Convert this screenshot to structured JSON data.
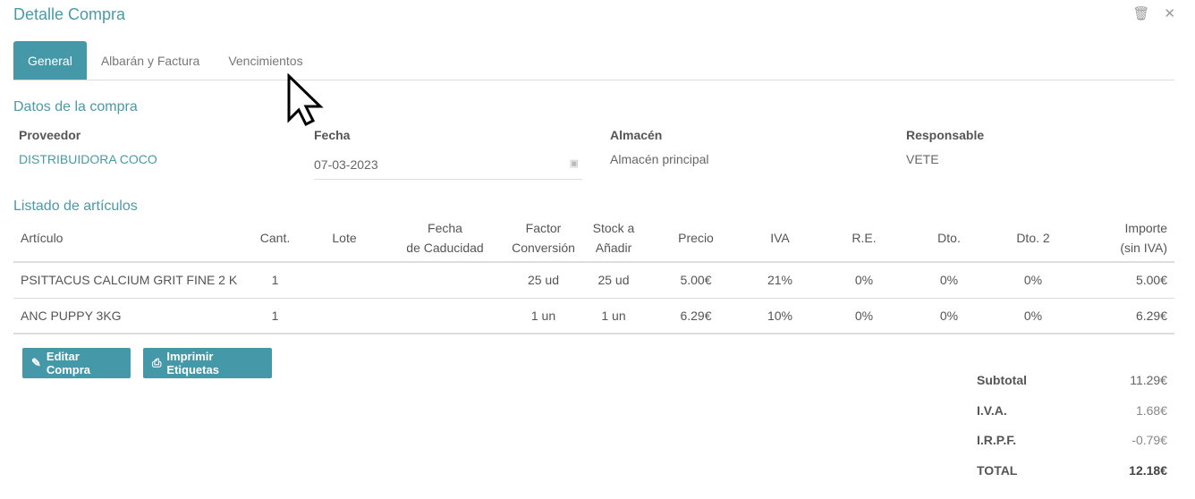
{
  "header": {
    "title": "Detalle Compra",
    "icons": [
      "trash-icon",
      "close-icon"
    ]
  },
  "tabs": [
    {
      "label": "General",
      "active": true
    },
    {
      "label": "Albarán y Factura"
    },
    {
      "label": "Vencimientos"
    }
  ],
  "datos": {
    "title": "Datos de la compra",
    "proveedor": {
      "label": "Proveedor",
      "value": "DISTRIBUIDORA COCO"
    },
    "fecha": {
      "label": "Fecha",
      "value": "07-03-2023"
    },
    "almacen": {
      "label": "Almacén",
      "value": "Almacén principal"
    },
    "responsable": {
      "label": "Responsable",
      "value": "VETE"
    }
  },
  "listado": {
    "title": "Listado de artículos",
    "columns": [
      "Artículo",
      "Cant.",
      "Lote",
      "Fecha de Caducidad",
      "Factor Conversión",
      "Stock a Añadir",
      "Precio",
      "IVA",
      "R.E.",
      "Dto.",
      "Dto. 2",
      "Importe (sin IVA)"
    ],
    "rows": [
      [
        "PSITTACUS CALCIUM GRIT FINE 2 K",
        "1",
        "",
        "",
        "25 ud",
        "25 ud",
        "5.00€",
        "21%",
        "0%",
        "0%",
        "0%",
        "5.00€"
      ],
      [
        "ANC PUPPY 3KG",
        "1",
        "",
        "",
        "1 un",
        "1 un",
        "6.29€",
        "10%",
        "0%",
        "0%",
        "0%",
        "6.29€"
      ]
    ]
  },
  "actions": {
    "edit": "Editar Compra",
    "print": "Imprimir Etiquetas"
  },
  "totals": [
    {
      "label": "Subtotal",
      "value": "11.29€"
    },
    {
      "label": "I.V.A.",
      "value": "1.68€"
    },
    {
      "label": "I.R.P.F.",
      "value": "-0.79€"
    },
    {
      "label": "TOTAL",
      "value": "12.18€"
    }
  ],
  "colors": {
    "accent": "#4598a8"
  }
}
